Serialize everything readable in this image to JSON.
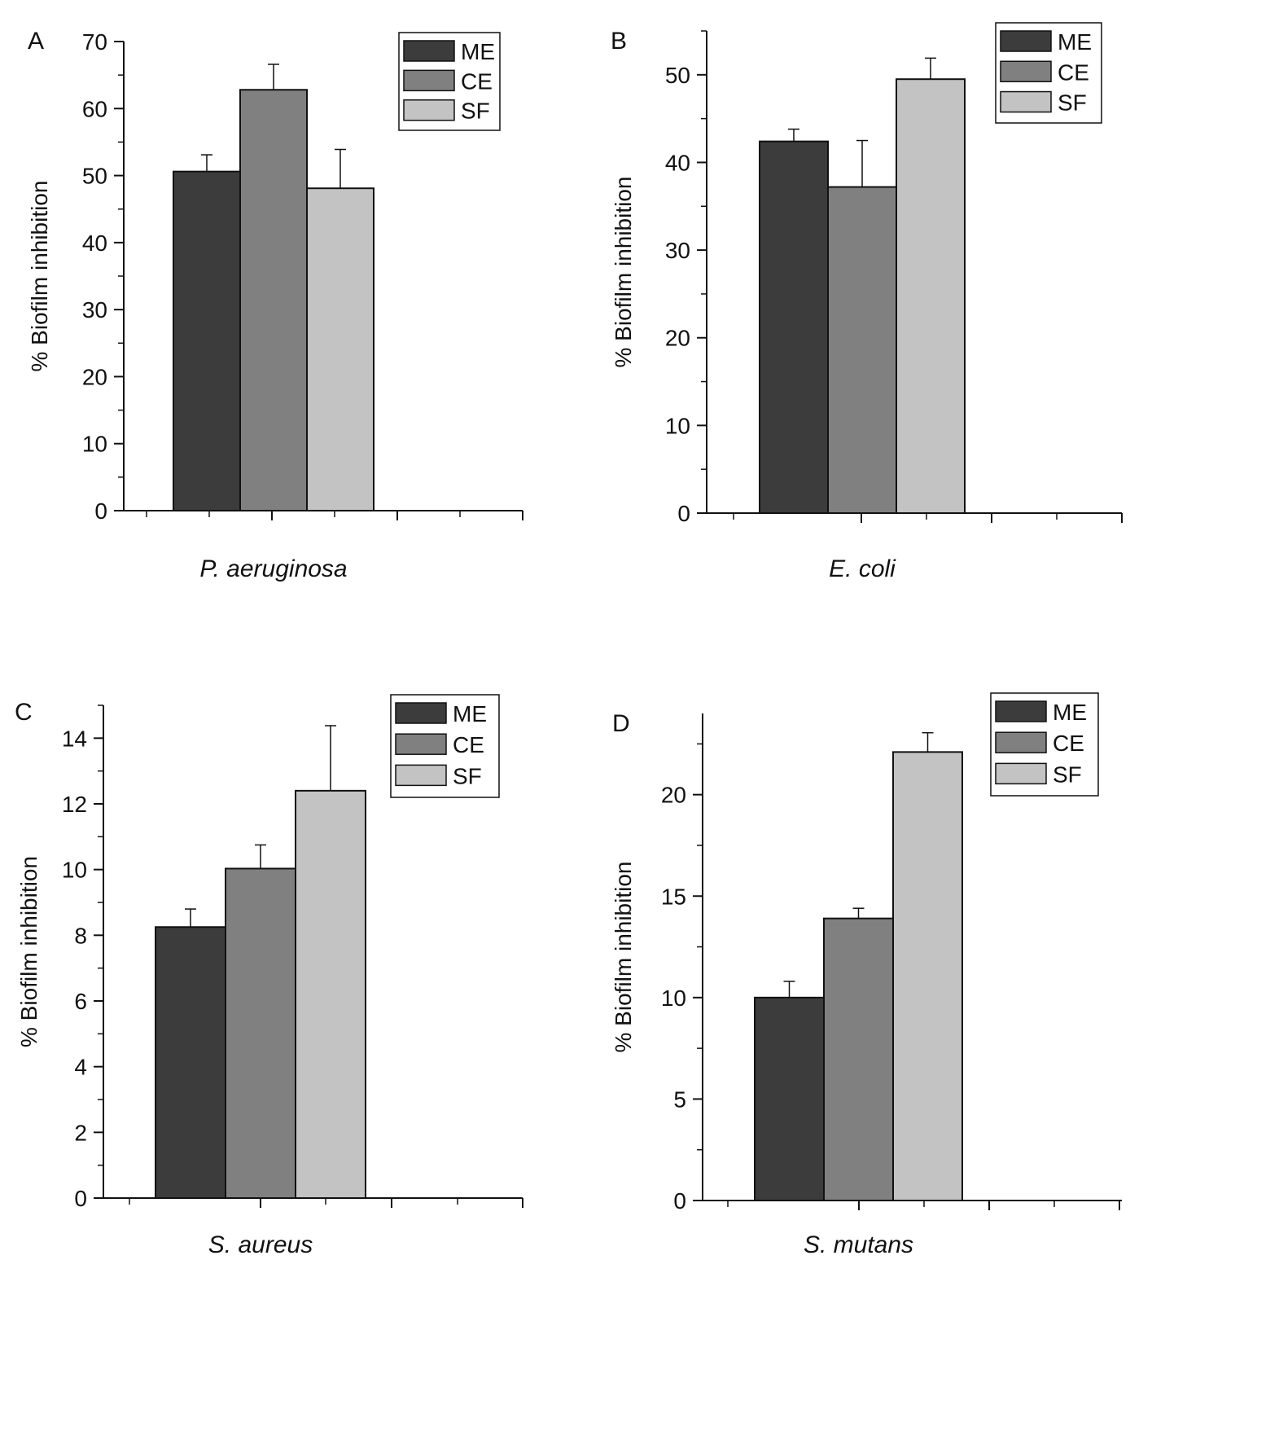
{
  "chart_data": [
    {
      "type": "bar",
      "panel": "A",
      "xlabel": "P. aeruginosa",
      "ylabel": "% Biofilm inhibition",
      "ylim": [
        0,
        70
      ],
      "yticks": [
        0,
        10,
        20,
        30,
        40,
        50,
        60,
        70
      ],
      "series": [
        {
          "name": "ME",
          "value": 50.6,
          "error": 2.5
        },
        {
          "name": "CE",
          "value": 62.8,
          "error": 3.8
        },
        {
          "name": "SF",
          "value": 48.1,
          "error": 5.8
        }
      ]
    },
    {
      "type": "bar",
      "panel": "B",
      "xlabel": "E. coli",
      "ylabel": "% Biofilm inhibition",
      "ylim": [
        0,
        55
      ],
      "yticks": [
        0,
        10,
        20,
        30,
        40,
        50
      ],
      "series": [
        {
          "name": "ME",
          "value": 42.4,
          "error": 1.4
        },
        {
          "name": "CE",
          "value": 37.2,
          "error": 5.3
        },
        {
          "name": "SF",
          "value": 49.5,
          "error": 2.4
        }
      ]
    },
    {
      "type": "bar",
      "panel": "C",
      "xlabel": "S. aureus",
      "ylabel": "% Biofilm inhibition",
      "ylim": [
        0,
        15
      ],
      "yticks": [
        0,
        2,
        4,
        6,
        8,
        10,
        12,
        14
      ],
      "series": [
        {
          "name": "ME",
          "value": 8.25,
          "error": 0.55
        },
        {
          "name": "CE",
          "value": 10.03,
          "error": 0.72
        },
        {
          "name": "SF",
          "value": 12.4,
          "error": 1.98
        }
      ]
    },
    {
      "type": "bar",
      "panel": "D",
      "xlabel": "S. mutans",
      "ylabel": "% Biofilm inhibition",
      "ylim": [
        0,
        24
      ],
      "yticks": [
        0,
        5,
        10,
        15,
        20
      ],
      "series": [
        {
          "name": "ME",
          "value": 10.0,
          "error": 0.8
        },
        {
          "name": "CE",
          "value": 13.9,
          "error": 0.5
        },
        {
          "name": "SF",
          "value": 22.1,
          "error": 0.95
        }
      ]
    }
  ],
  "colors": {
    "ME": "#3c3c3c",
    "CE": "#808080",
    "SF": "#c3c3c3"
  }
}
